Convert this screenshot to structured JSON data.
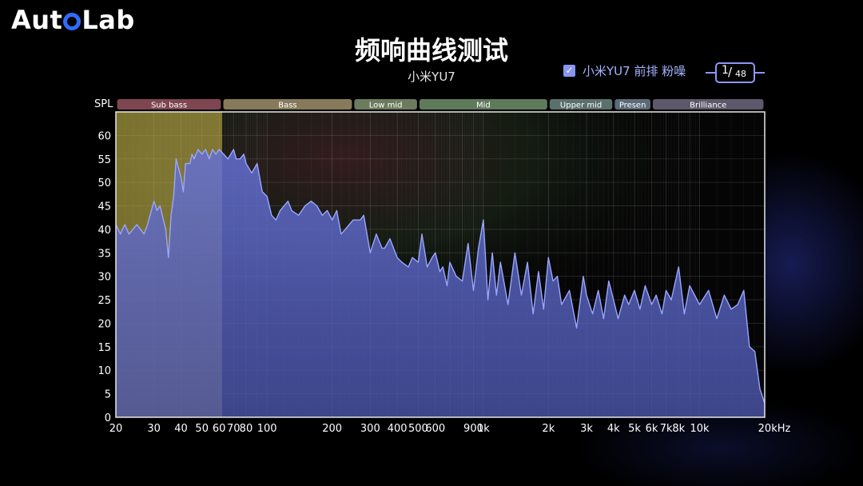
{
  "header": {
    "logo_text_1": "Aut",
    "logo_text_2": "Lab",
    "title": "频响曲线测试",
    "subtitle": "小米YU7"
  },
  "legend": {
    "checked": true,
    "label": "小米YU7 前排 粉噪"
  },
  "pager": {
    "current": "1",
    "total": "48"
  },
  "colors": {
    "background": "#000000",
    "series_fill": "#5b67c4",
    "series_line": "#9aa6ff",
    "sub_bass_highlight": "#d5c04d",
    "accent": "#8a99f5"
  },
  "chart_data": {
    "type": "area",
    "xscale": "log",
    "xlim": [
      20,
      20000
    ],
    "ylim": [
      0,
      65
    ],
    "ylabel": "SPL",
    "grid": true,
    "yticks": [
      0,
      5,
      10,
      15,
      20,
      25,
      30,
      35,
      40,
      45,
      50,
      55,
      60
    ],
    "xtick_values": [
      20,
      30,
      40,
      50,
      60,
      70,
      80,
      100,
      200,
      300,
      400,
      500,
      600,
      900,
      1000,
      2000,
      3000,
      4000,
      5000,
      6000,
      7000,
      8000,
      10000,
      20000
    ],
    "xtick_labels": [
      "20",
      "30",
      "40",
      "50",
      "60",
      "70",
      "80",
      "100",
      "200",
      "300",
      "400",
      "500",
      "600",
      "900",
      "1k",
      "2k",
      "3k",
      "4k",
      "5k",
      "6k",
      "7k",
      "8k",
      "10k",
      "20kHz"
    ],
    "bands": [
      {
        "name": "Sub bass",
        "from": 20,
        "to": 62,
        "color": "#7e4650"
      },
      {
        "name": "Bass",
        "from": 62,
        "to": 250,
        "color": "#867a5a"
      },
      {
        "name": "Low mid",
        "from": 250,
        "to": 500,
        "color": "#6c7b5d"
      },
      {
        "name": "Mid",
        "from": 500,
        "to": 2000,
        "color": "#5f7a5b"
      },
      {
        "name": "Upper mid",
        "from": 2000,
        "to": 4000,
        "color": "#5a706c"
      },
      {
        "name": "Presen",
        "from": 4000,
        "to": 6000,
        "color": "#5b6a78"
      },
      {
        "name": "Brilliance",
        "from": 6000,
        "to": 20000,
        "color": "#5d586b"
      }
    ],
    "highlight_region": [
      20,
      62
    ],
    "series": [
      {
        "x": [
          20,
          21,
          22,
          23,
          24,
          25,
          26,
          27,
          28,
          30,
          31,
          32,
          34,
          35,
          36,
          37,
          38,
          40,
          41,
          42,
          44,
          45,
          46,
          48,
          50,
          52,
          54,
          56,
          58,
          60,
          63,
          66,
          70,
          72,
          75,
          78,
          80,
          85,
          90,
          95,
          100,
          105,
          110,
          115,
          120,
          125,
          130,
          140,
          150,
          160,
          170,
          180,
          190,
          200,
          210,
          220,
          230,
          240,
          250,
          270,
          280,
          300,
          320,
          340,
          350,
          370,
          400,
          420,
          450,
          470,
          500,
          520,
          550,
          580,
          600,
          630,
          650,
          680,
          700,
          750,
          800,
          850,
          900,
          950,
          1000,
          1050,
          1100,
          1150,
          1200,
          1300,
          1400,
          1500,
          1600,
          1700,
          1800,
          1900,
          2000,
          2100,
          2200,
          2300,
          2500,
          2700,
          2900,
          3000,
          3200,
          3400,
          3600,
          3800,
          4000,
          4200,
          4500,
          4700,
          5000,
          5300,
          5600,
          6000,
          6300,
          6700,
          7000,
          7400,
          8000,
          8500,
          9000,
          10000,
          11000,
          12000,
          13000,
          14000,
          15000,
          16000,
          17000,
          18000,
          19000,
          20000
        ],
        "y": [
          41,
          39,
          41,
          39,
          40,
          41,
          40,
          39,
          41,
          46,
          44,
          45,
          40,
          34,
          43,
          47,
          55,
          51,
          48,
          54,
          54,
          56,
          55,
          57,
          56,
          57,
          55,
          57,
          56,
          57,
          56,
          55,
          57,
          55,
          55,
          56,
          54,
          52,
          54,
          48,
          47,
          43,
          42,
          44,
          45,
          46,
          44,
          43,
          45,
          46,
          45,
          43,
          44,
          42,
          44,
          39,
          40,
          41,
          42,
          42,
          43,
          35,
          39,
          36,
          36,
          38,
          34,
          33,
          32,
          34,
          33,
          39,
          32,
          34,
          35,
          31,
          32,
          28,
          33,
          30,
          29,
          37,
          27,
          36,
          42,
          25,
          35,
          26,
          33,
          24,
          35,
          26,
          33,
          22,
          31,
          23,
          34,
          29,
          30,
          24,
          27,
          19,
          30,
          26,
          22,
          27,
          21,
          29,
          25,
          21,
          26,
          24,
          27,
          23,
          28,
          24,
          26,
          22,
          27,
          25,
          32,
          22,
          28,
          24,
          27,
          21,
          26,
          23,
          24,
          27,
          15,
          14,
          6,
          3
        ]
      }
    ]
  }
}
